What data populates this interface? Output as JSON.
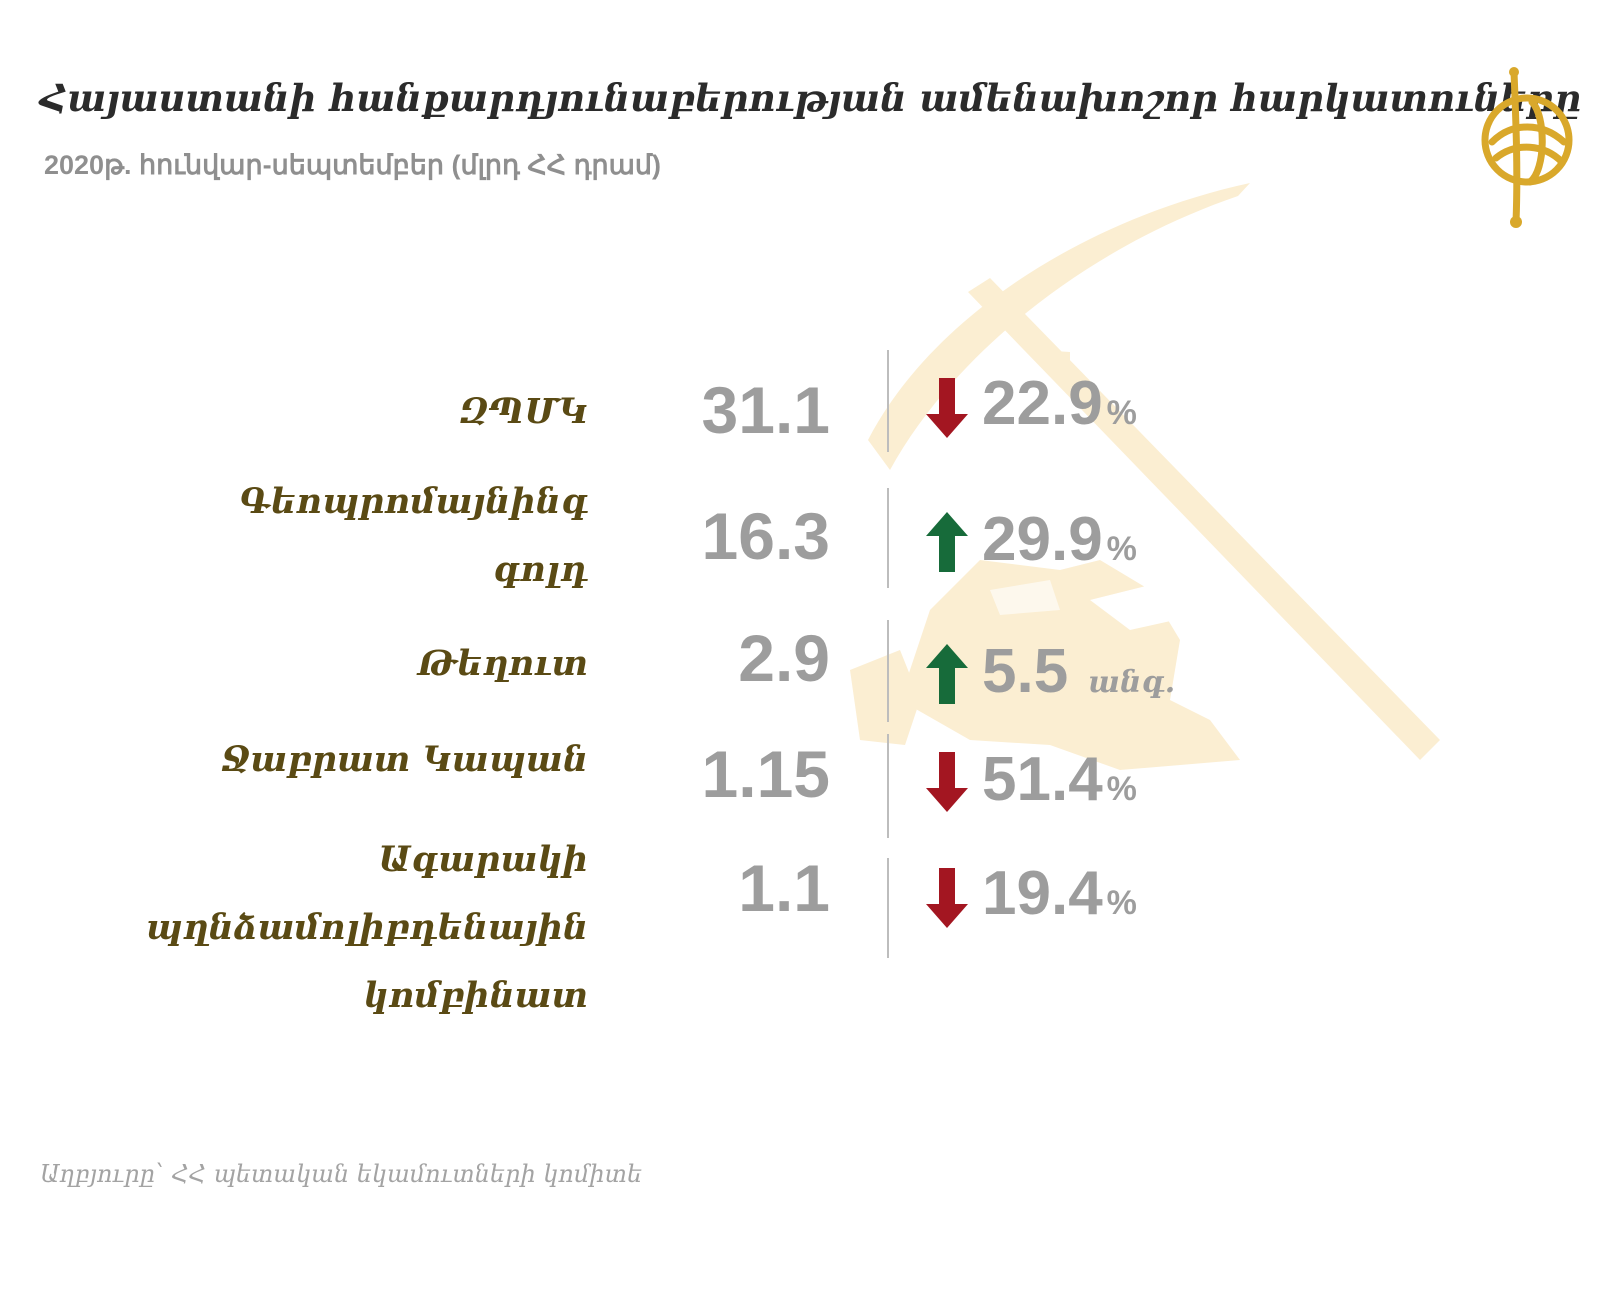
{
  "title": "Հայաստանի հանքարդյունաբերության  ամենախոշոր հարկատուները",
  "subtitle": "2020թ. հունվար-սեպտեմբեր (մլրդ ՀՀ դրամ)",
  "source": "Աղբյուրը՝ ՀՀ պետական եկամուտների կոմիտե",
  "colors": {
    "down": "#a31621",
    "up": "#176b3a",
    "value_gray": "#9d9d9d",
    "company_brown": "#5a4a14",
    "logo_gold": "#d9a82b",
    "watermark": "#fbeed2"
  },
  "icons": {
    "logo": "gold-emblem-icon",
    "watermark": "pickaxe-and-rocks-watermark",
    "down": "arrow-down-icon",
    "up": "arrow-up-icon"
  },
  "chart_data": {
    "type": "table",
    "columns": [
      "company",
      "value",
      "change"
    ],
    "rows": [
      {
        "company": "ԶՊՄԿ",
        "value": 31.1,
        "value_text": "31.1",
        "direction": "down",
        "change": 22.9,
        "change_text": "22.9",
        "change_unit": "%"
      },
      {
        "company": "Գեոպրոմայնինգ\nգոլդ",
        "value": 16.3,
        "value_text": "16.3",
        "direction": "up",
        "change": 29.9,
        "change_text": "29.9",
        "change_unit": "%"
      },
      {
        "company": "Թեղուտ",
        "value": 2.9,
        "value_text": "2.9",
        "direction": "up",
        "change": 5.5,
        "change_text": "5.5",
        "change_unit": "անգ."
      },
      {
        "company": "Ջաբրատ Կապան",
        "value": 1.15,
        "value_text": "1.15",
        "direction": "down",
        "change": 51.4,
        "change_text": "51.4",
        "change_unit": "%"
      },
      {
        "company": "Ագարակի\nպղնձամոլիբդենային\nկոմբինատ",
        "value": 1.1,
        "value_text": "1.1",
        "direction": "down",
        "change": 19.4,
        "change_text": "19.4",
        "change_unit": "%"
      }
    ]
  }
}
